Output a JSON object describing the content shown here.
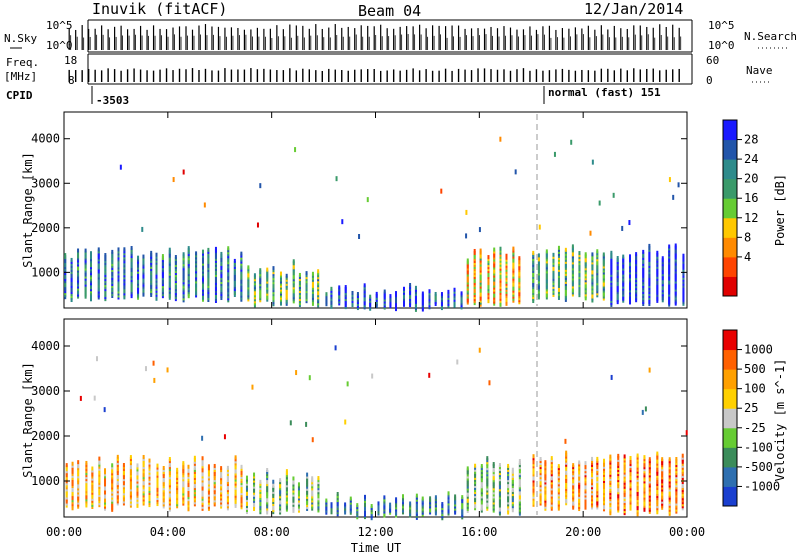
{
  "header": {
    "station": "Inuvik (fitACF)",
    "beam": "Beam 04",
    "date": "12/Jan/2014"
  },
  "summary": {
    "nsky_label": "N.Sky",
    "nsearch_label": "N.Search",
    "freq_label_top": "Freq.",
    "freq_label_bottom": "[MHz]",
    "nave_label": "Nave",
    "cpid_label": "CPID",
    "log_ticks": [
      "10^5",
      "10^0"
    ],
    "freq_ticks": [
      "18",
      "8"
    ],
    "nave_ticks": [
      "60",
      "0"
    ],
    "cpid_values": [
      "-3503",
      "normal (fast) 151"
    ]
  },
  "x_axis": {
    "label": "Time UT",
    "ticks": [
      "00:00",
      "04:00",
      "08:00",
      "12:00",
      "16:00",
      "20:00",
      "00:00"
    ]
  },
  "chart_data": [
    {
      "type": "scatter",
      "name": "power",
      "xlabel": "Time UT",
      "ylabel": "Slant Range [km]",
      "x_unit": "hours UT",
      "xlim": [
        0,
        24
      ],
      "ylim": [
        200,
        4600
      ],
      "yticks": [
        1000,
        2000,
        3000,
        4000
      ],
      "colorbar": {
        "label": "Power [dB]",
        "ticks": [
          "28",
          "24",
          "20",
          "16",
          "12",
          "8",
          "4"
        ],
        "colors": [
          "#e00000",
          "#ff4400",
          "#ff8a00",
          "#ffc800",
          "#66cc33",
          "#3a9a6a",
          "#2e8b8b",
          "#2255aa",
          "#1a1aff"
        ]
      },
      "bands": [
        {
          "start": 0.0,
          "end": 7.0,
          "low": 400,
          "high": 1600,
          "level": 0.75
        },
        {
          "start": 7.0,
          "end": 10.0,
          "low": 300,
          "high": 1300,
          "level": 0.6
        },
        {
          "start": 10.0,
          "end": 15.5,
          "low": 200,
          "high": 800,
          "level": 0.85
        },
        {
          "start": 15.5,
          "end": 17.6,
          "low": 300,
          "high": 1600,
          "level": 0.35
        },
        {
          "start": 18.0,
          "end": 21.0,
          "low": 400,
          "high": 1700,
          "level": 0.6
        },
        {
          "start": 21.0,
          "end": 23.9,
          "low": 300,
          "high": 1700,
          "level": 0.9
        }
      ]
    },
    {
      "type": "scatter",
      "name": "velocity",
      "xlabel": "Time UT",
      "ylabel": "Slant Range [km]",
      "x_unit": "hours UT",
      "xlim": [
        0,
        24
      ],
      "ylim": [
        200,
        4600
      ],
      "yticks": [
        1000,
        2000,
        3000,
        4000
      ],
      "colorbar": {
        "label": "Velocity [m s^-1]",
        "ticks": [
          "1000",
          "500",
          "100",
          "25",
          "-25",
          "-100",
          "-500",
          "-1000"
        ],
        "colors": [
          "#1a3fcf",
          "#2e6fb0",
          "#3b8c5a",
          "#66cc33",
          "#c8c8c8",
          "#ffd000",
          "#ffa000",
          "#ff6000",
          "#e80000"
        ]
      },
      "bands": [
        {
          "start": 0.0,
          "end": 7.0,
          "low": 400,
          "high": 1600,
          "level": 0.65
        },
        {
          "start": 7.0,
          "end": 10.0,
          "low": 300,
          "high": 1300,
          "level": 0.4
        },
        {
          "start": 10.0,
          "end": 15.5,
          "low": 200,
          "high": 800,
          "level": 0.2
        },
        {
          "start": 15.5,
          "end": 17.6,
          "low": 300,
          "high": 1600,
          "level": 0.4
        },
        {
          "start": 18.0,
          "end": 21.0,
          "low": 400,
          "high": 1700,
          "level": 0.7
        },
        {
          "start": 21.0,
          "end": 23.9,
          "low": 300,
          "high": 1700,
          "level": 0.75
        }
      ]
    }
  ]
}
